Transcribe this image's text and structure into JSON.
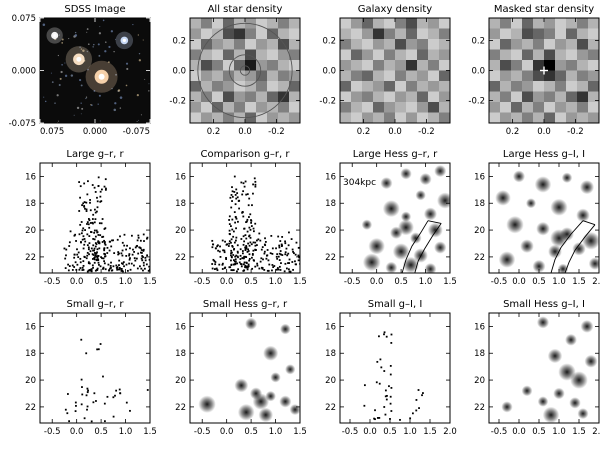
{
  "chart_data": [
    {
      "id": "p1",
      "type": "image",
      "title": "SDSS Image",
      "x_ticks": [
        "0.075",
        "0.000",
        "-0.075"
      ],
      "y_ticks": [
        "0.075",
        "0.000",
        "-0.075"
      ],
      "xlim": [
        0.075,
        -0.075
      ],
      "ylim": [
        -0.075,
        0.075
      ],
      "sources": [
        {
          "x": -0.009,
          "y": -0.009,
          "color": "#ffd8b0",
          "brightness": 1.0
        },
        {
          "x": 0.022,
          "y": 0.016,
          "color": "#ffe6c8",
          "brightness": 0.75
        },
        {
          "x": -0.04,
          "y": 0.043,
          "color": "#cfe0ff",
          "brightness": 0.35
        },
        {
          "x": 0.055,
          "y": 0.05,
          "color": "#ffffff",
          "brightness": 0.3
        }
      ]
    },
    {
      "id": "p2",
      "type": "heatmap",
      "title": "All star density",
      "x_ticks": [
        "0.2",
        "0.0",
        "-0.2"
      ],
      "y_ticks": [
        "-0.2",
        "0.0",
        "0.2"
      ],
      "xlim": [
        0.35,
        -0.35
      ],
      "ylim": [
        -0.35,
        0.35
      ],
      "circle_radii": [
        0.03,
        0.1,
        0.3
      ],
      "grid": [
        [
          0.3,
          0.5,
          0.2,
          0.6,
          0.3,
          0.4,
          0.2,
          0.3,
          0.5,
          0.3
        ],
        [
          0.4,
          0.2,
          0.3,
          0.7,
          0.8,
          0.5,
          0.2,
          0.6,
          0.3,
          0.2
        ],
        [
          0.2,
          0.6,
          0.4,
          0.3,
          0.5,
          0.2,
          0.4,
          0.3,
          0.7,
          0.3
        ],
        [
          0.5,
          0.3,
          0.2,
          0.6,
          0.3,
          0.7,
          0.3,
          0.2,
          0.4,
          0.5
        ],
        [
          0.3,
          0.7,
          0.5,
          0.2,
          0.6,
          0.9,
          0.4,
          0.5,
          0.3,
          0.2
        ],
        [
          0.2,
          0.4,
          0.3,
          0.5,
          0.3,
          0.4,
          0.6,
          0.3,
          0.5,
          0.4
        ],
        [
          0.6,
          0.3,
          0.5,
          0.4,
          0.2,
          0.3,
          0.5,
          0.2,
          0.3,
          0.6
        ],
        [
          0.3,
          0.5,
          0.2,
          0.7,
          0.4,
          0.5,
          0.3,
          0.6,
          0.8,
          0.3
        ],
        [
          0.4,
          0.2,
          0.6,
          0.3,
          0.5,
          0.2,
          0.4,
          0.3,
          0.5,
          0.2
        ],
        [
          0.2,
          0.4,
          0.3,
          0.5,
          0.3,
          0.6,
          0.2,
          0.4,
          0.3,
          0.4
        ]
      ]
    },
    {
      "id": "p3",
      "type": "heatmap",
      "title": "Galaxy density",
      "x_ticks": [
        "0.2",
        "0.0",
        "-0.2"
      ],
      "y_ticks": [
        "-0.2",
        "0.0",
        "0.2"
      ],
      "xlim": [
        0.35,
        -0.35
      ],
      "ylim": [
        -0.35,
        0.35
      ],
      "grid": [
        [
          0.2,
          0.4,
          0.6,
          0.3,
          0.2,
          0.5,
          0.7,
          0.3,
          0.4,
          0.2
        ],
        [
          0.3,
          0.2,
          0.4,
          0.8,
          0.5,
          0.3,
          0.6,
          0.2,
          0.3,
          0.5
        ],
        [
          0.5,
          0.3,
          0.2,
          0.4,
          0.3,
          0.7,
          0.4,
          0.5,
          0.2,
          0.3
        ],
        [
          0.2,
          0.6,
          0.4,
          0.2,
          0.5,
          0.3,
          0.2,
          0.6,
          0.3,
          0.4
        ],
        [
          0.4,
          0.3,
          0.2,
          0.5,
          0.3,
          0.4,
          0.8,
          0.3,
          0.5,
          0.2
        ],
        [
          0.3,
          0.5,
          0.6,
          0.3,
          0.2,
          0.5,
          0.3,
          0.4,
          0.2,
          0.6
        ],
        [
          0.6,
          0.2,
          0.3,
          0.4,
          0.6,
          0.2,
          0.5,
          0.3,
          0.4,
          0.3
        ],
        [
          0.2,
          0.4,
          0.5,
          0.3,
          0.2,
          0.4,
          0.3,
          0.6,
          0.2,
          0.4
        ],
        [
          0.5,
          0.3,
          0.2,
          0.6,
          0.4,
          0.3,
          0.2,
          0.4,
          0.7,
          0.3
        ],
        [
          0.3,
          0.2,
          0.4,
          0.3,
          0.5,
          0.2,
          0.4,
          0.2,
          0.3,
          0.5
        ]
      ]
    },
    {
      "id": "p4",
      "type": "heatmap",
      "title": "Masked star density",
      "x_ticks": [
        "0.2",
        "0.0",
        "-0.2"
      ],
      "y_ticks": [
        "-0.2",
        "0.0",
        "0.2"
      ],
      "xlim": [
        0.35,
        -0.35
      ],
      "ylim": [
        -0.35,
        0.35
      ],
      "marker": [
        0.0,
        0.0
      ],
      "grid": [
        [
          0.3,
          0.5,
          0.2,
          0.6,
          0.3,
          0.4,
          0.2,
          0.3,
          0.5,
          0.3
        ],
        [
          0.4,
          0.2,
          0.3,
          0.7,
          0.6,
          0.5,
          0.2,
          0.6,
          0.3,
          0.2
        ],
        [
          0.2,
          0.6,
          0.4,
          0.3,
          0.5,
          0.2,
          0.4,
          0.3,
          0.7,
          0.3
        ],
        [
          0.5,
          0.3,
          0.2,
          0.6,
          0.3,
          0.7,
          0.3,
          0.2,
          0.4,
          0.5
        ],
        [
          0.3,
          0.7,
          0.5,
          0.2,
          0.8,
          1.0,
          0.4,
          0.5,
          0.3,
          0.2
        ],
        [
          0.2,
          0.4,
          0.3,
          0.5,
          0.7,
          0.8,
          0.6,
          0.3,
          0.5,
          0.4
        ],
        [
          0.6,
          0.3,
          0.5,
          0.4,
          0.2,
          0.3,
          0.5,
          0.2,
          0.3,
          0.6
        ],
        [
          0.3,
          0.5,
          0.2,
          0.7,
          0.4,
          0.5,
          0.3,
          0.6,
          0.8,
          0.3
        ],
        [
          0.4,
          0.2,
          0.6,
          0.3,
          0.5,
          0.2,
          0.4,
          0.3,
          0.5,
          0.2
        ],
        [
          0.2,
          0.4,
          0.3,
          0.5,
          0.3,
          0.6,
          0.2,
          0.4,
          0.3,
          0.4
        ]
      ]
    },
    {
      "id": "p5",
      "type": "scatter",
      "title": "Large g–r, r",
      "x_ticks": [
        "-0.5",
        "0.0",
        "0.5",
        "1.0",
        "1.5"
      ],
      "y_ticks": [
        "16",
        "18",
        "20",
        "22"
      ],
      "xlim": [
        -0.75,
        1.5
      ],
      "ylim": [
        23.2,
        15.0
      ],
      "n_points": 330,
      "seed": 11
    },
    {
      "id": "p6",
      "type": "scatter",
      "title": "Comparison g–r, r",
      "x_ticks": [
        "-0.5",
        "0.0",
        "0.5",
        "1.0",
        "1.5"
      ],
      "y_ticks": [
        "16",
        "18",
        "20",
        "22"
      ],
      "xlim": [
        -0.75,
        1.5
      ],
      "ylim": [
        23.2,
        15.0
      ],
      "n_points": 330,
      "seed": 27
    },
    {
      "id": "p7",
      "type": "heatmap",
      "title": "Large Hess g–r, r",
      "x_ticks": [
        "-0.5",
        "0.0",
        "0.5",
        "1.0",
        "1.5"
      ],
      "y_ticks": [
        "16",
        "18",
        "20",
        "22"
      ],
      "xlim": [
        -0.75,
        1.5
      ],
      "ylim": [
        23.2,
        15.0
      ],
      "annotation": "304kpc",
      "blobs": [
        [
          0.2,
          16.5
        ],
        [
          0.6,
          15.8
        ],
        [
          1.0,
          16.2
        ],
        [
          1.3,
          15.6
        ],
        [
          0.9,
          17.4
        ],
        [
          1.4,
          17.8
        ],
        [
          0.3,
          18.4
        ],
        [
          0.6,
          19.0
        ],
        [
          1.1,
          18.8
        ],
        [
          -0.2,
          19.6
        ],
        [
          0.4,
          20.2
        ],
        [
          0.8,
          20.6
        ],
        [
          1.2,
          20.0
        ],
        [
          0.0,
          21.2
        ],
        [
          0.5,
          21.6
        ],
        [
          0.9,
          21.9
        ],
        [
          1.3,
          21.3
        ],
        [
          -0.1,
          22.4
        ],
        [
          0.3,
          22.8
        ],
        [
          0.7,
          22.6
        ],
        [
          1.1,
          22.9
        ],
        [
          0.6,
          19.8
        ]
      ],
      "isochrone": [
        [
          [
            1.05,
            19.3
          ],
          [
            0.9,
            20.2
          ],
          [
            0.72,
            21.2
          ],
          [
            0.6,
            22.2
          ],
          [
            0.52,
            23.2
          ]
        ],
        [
          [
            1.32,
            19.5
          ],
          [
            1.15,
            20.4
          ],
          [
            0.98,
            21.4
          ],
          [
            0.85,
            22.3
          ],
          [
            0.78,
            23.2
          ]
        ],
        [
          [
            1.05,
            19.3
          ],
          [
            1.32,
            19.5
          ]
        ]
      ]
    },
    {
      "id": "p8",
      "type": "heatmap",
      "title": "Large Hess g–I, I",
      "x_ticks": [
        "-0.5",
        "0.0",
        "0.5",
        "1.0",
        "1.5",
        "2.0"
      ],
      "y_ticks": [
        "16",
        "18",
        "20",
        "22"
      ],
      "xlim": [
        -0.75,
        2.0
      ],
      "ylim": [
        23.2,
        15.0
      ],
      "blobs": [
        [
          0.0,
          16.0
        ],
        [
          0.6,
          16.6
        ],
        [
          1.2,
          16.1
        ],
        [
          1.7,
          16.8
        ],
        [
          -0.4,
          17.6
        ],
        [
          0.3,
          18.0
        ],
        [
          1.0,
          18.3
        ],
        [
          1.6,
          18.9
        ],
        [
          -0.1,
          19.6
        ],
        [
          0.6,
          19.9
        ],
        [
          1.2,
          20.3
        ],
        [
          1.8,
          20.8
        ],
        [
          0.2,
          21.2
        ],
        [
          0.9,
          21.6
        ],
        [
          1.5,
          21.4
        ],
        [
          -0.3,
          22.2
        ],
        [
          0.5,
          22.7
        ],
        [
          1.1,
          22.9
        ],
        [
          1.9,
          22.5
        ],
        [
          1.0,
          20.6
        ]
      ],
      "isochrone": [
        [
          [
            1.6,
            19.3
          ],
          [
            1.3,
            20.3
          ],
          [
            1.05,
            21.3
          ],
          [
            0.9,
            22.2
          ],
          [
            0.8,
            23.2
          ]
        ],
        [
          [
            1.9,
            19.6
          ],
          [
            1.65,
            20.5
          ],
          [
            1.4,
            21.5
          ],
          [
            1.25,
            22.4
          ],
          [
            1.15,
            23.2
          ]
        ],
        [
          [
            1.6,
            19.3
          ],
          [
            1.9,
            19.6
          ]
        ]
      ]
    },
    {
      "id": "p9",
      "type": "scatter",
      "title": "Small g–r, r",
      "x_ticks": [
        "-0.5",
        "0.0",
        "0.5",
        "1.0",
        "1.5"
      ],
      "y_ticks": [
        "16",
        "18",
        "20",
        "22"
      ],
      "xlim": [
        -0.75,
        1.5
      ],
      "ylim": [
        23.2,
        15.0
      ],
      "n_points": 42,
      "seed": 5
    },
    {
      "id": "p10",
      "type": "heatmap",
      "title": "Small Hess g–r, r",
      "x_ticks": [
        "-0.5",
        "0.0",
        "0.5",
        "1.0",
        "1.5"
      ],
      "y_ticks": [
        "16",
        "18",
        "20",
        "22"
      ],
      "xlim": [
        -0.75,
        1.5
      ],
      "ylim": [
        23.2,
        15.0
      ],
      "blobs": [
        [
          0.5,
          15.8
        ],
        [
          1.2,
          16.2
        ],
        [
          0.9,
          18.0
        ],
        [
          1.3,
          19.2
        ],
        [
          1.0,
          19.8
        ],
        [
          0.3,
          20.4
        ],
        [
          -0.4,
          21.8
        ],
        [
          0.6,
          21.0
        ],
        [
          0.9,
          21.2
        ],
        [
          1.2,
          21.6
        ],
        [
          0.4,
          22.4
        ],
        [
          0.8,
          22.6
        ],
        [
          1.4,
          22.2
        ],
        [
          0.7,
          21.6
        ]
      ]
    },
    {
      "id": "p11",
      "type": "scatter",
      "title": "Small g–I, I",
      "x_ticks": [
        "-0.5",
        "0.0",
        "0.5",
        "1.0",
        "1.5",
        "2.0"
      ],
      "y_ticks": [
        "16",
        "18",
        "20",
        "22"
      ],
      "xlim": [
        -0.75,
        2.0
      ],
      "ylim": [
        23.2,
        15.0
      ],
      "n_points": 42,
      "seed": 9
    },
    {
      "id": "p12",
      "type": "heatmap",
      "title": "Small Hess g–I, I",
      "x_ticks": [
        "-0.5",
        "0.0",
        "0.5",
        "1.0",
        "1.5",
        "2.0"
      ],
      "y_ticks": [
        "16",
        "18",
        "20",
        "22"
      ],
      "xlim": [
        -0.75,
        2.0
      ],
      "ylim": [
        23.2,
        15.0
      ],
      "blobs": [
        [
          0.6,
          15.7
        ],
        [
          1.7,
          16.0
        ],
        [
          1.3,
          17.0
        ],
        [
          0.9,
          18.2
        ],
        [
          1.8,
          18.6
        ],
        [
          1.2,
          19.4
        ],
        [
          1.5,
          20.0
        ],
        [
          0.2,
          20.8
        ],
        [
          1.0,
          21.0
        ],
        [
          0.6,
          21.6
        ],
        [
          1.4,
          21.7
        ],
        [
          -0.3,
          22.0
        ],
        [
          0.8,
          22.6
        ],
        [
          1.6,
          22.5
        ]
      ]
    }
  ]
}
